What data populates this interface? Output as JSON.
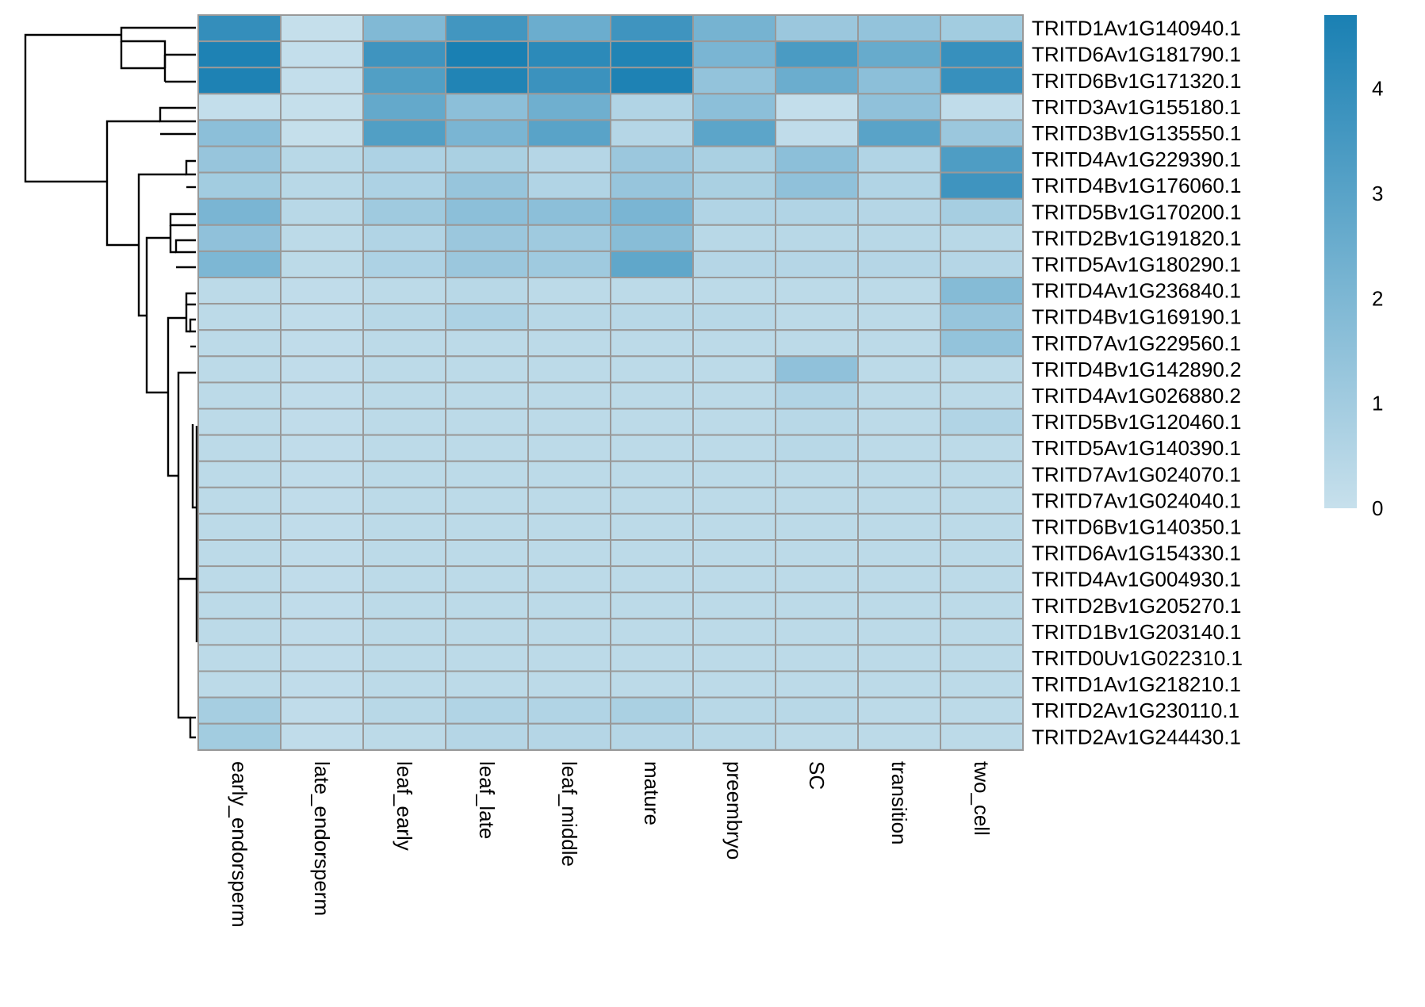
{
  "chart_data": {
    "type": "heatmap",
    "columns": [
      "early_endorsperm",
      "late_endorsperm",
      "leaf_early",
      "leaf_late",
      "leaf_middle",
      "mature",
      "preembryo",
      "SC",
      "transition",
      "two_cell"
    ],
    "rows": [
      "TRITD1Av1G140940.1",
      "TRITD6Av1G181790.1",
      "TRITD6Bv1G171320.1",
      "TRITD3Av1G155180.1",
      "TRITD3Bv1G135550.1",
      "TRITD4Av1G229390.1",
      "TRITD4Bv1G176060.1",
      "TRITD5Bv1G170200.1",
      "TRITD2Bv1G191820.1",
      "TRITD5Av1G180290.1",
      "TRITD4Av1G236840.1",
      "TRITD4Bv1G169190.1",
      "TRITD7Av1G229560.1",
      "TRITD4Bv1G142890.2",
      "TRITD4Av1G026880.2",
      "TRITD5Bv1G120460.1",
      "TRITD5Av1G140390.1",
      "TRITD7Av1G024070.1",
      "TRITD7Av1G024040.1",
      "TRITD6Bv1G140350.1",
      "TRITD6Av1G154330.1",
      "TRITD4Av1G004930.1",
      "TRITD2Bv1G205270.1",
      "TRITD1Bv1G203140.1",
      "TRITD0Uv1G022310.1",
      "TRITD1Av1G218210.1",
      "TRITD2Av1G230110.1",
      "TRITD2Av1G244430.1"
    ],
    "values": [
      [
        4.0,
        0.05,
        1.9,
        3.6,
        2.5,
        3.7,
        2.2,
        1.2,
        1.4,
        1.0
      ],
      [
        4.6,
        0.1,
        3.7,
        4.7,
        4.2,
        4.5,
        2.1,
        3.4,
        2.6,
        3.9
      ],
      [
        4.6,
        0.1,
        3.2,
        4.5,
        3.8,
        4.6,
        1.4,
        2.5,
        1.6,
        3.9
      ],
      [
        0.1,
        0.05,
        2.7,
        1.6,
        2.4,
        0.6,
        1.6,
        0.1,
        1.5,
        0.2
      ],
      [
        1.6,
        0.05,
        3.2,
        2.1,
        3.0,
        0.5,
        2.9,
        0.2,
        3.0,
        1.2
      ],
      [
        1.3,
        0.4,
        0.7,
        0.8,
        0.5,
        1.2,
        0.8,
        1.6,
        0.6,
        3.3
      ],
      [
        1.0,
        0.4,
        0.7,
        1.3,
        0.6,
        1.3,
        0.8,
        1.5,
        0.6,
        3.7
      ],
      [
        2.1,
        0.4,
        1.1,
        1.6,
        1.6,
        2.1,
        0.6,
        0.6,
        0.5,
        0.9
      ],
      [
        1.5,
        0.3,
        0.6,
        1.2,
        1.1,
        1.7,
        0.4,
        0.4,
        0.4,
        0.4
      ],
      [
        2.0,
        0.3,
        0.7,
        1.2,
        1.1,
        2.8,
        0.5,
        0.5,
        0.5,
        0.5
      ],
      [
        0.3,
        0.2,
        0.3,
        0.4,
        0.3,
        0.3,
        0.3,
        0.3,
        0.3,
        1.8
      ],
      [
        0.3,
        0.2,
        0.4,
        0.7,
        0.4,
        0.4,
        0.4,
        0.3,
        0.3,
        1.3
      ],
      [
        0.3,
        0.2,
        0.3,
        0.3,
        0.3,
        0.3,
        0.3,
        0.3,
        0.3,
        1.4
      ],
      [
        0.3,
        0.2,
        0.3,
        0.3,
        0.3,
        0.3,
        0.3,
        1.5,
        0.3,
        0.3
      ],
      [
        0.3,
        0.2,
        0.3,
        0.3,
        0.3,
        0.3,
        0.3,
        0.6,
        0.3,
        0.3
      ],
      [
        0.3,
        0.2,
        0.3,
        0.3,
        0.3,
        0.3,
        0.3,
        0.4,
        0.3,
        0.6
      ],
      [
        0.3,
        0.2,
        0.3,
        0.3,
        0.3,
        0.3,
        0.3,
        0.4,
        0.3,
        0.3
      ],
      [
        0.3,
        0.2,
        0.3,
        0.3,
        0.3,
        0.3,
        0.3,
        0.3,
        0.3,
        0.3
      ],
      [
        0.3,
        0.2,
        0.3,
        0.3,
        0.3,
        0.3,
        0.3,
        0.3,
        0.3,
        0.3
      ],
      [
        0.3,
        0.2,
        0.3,
        0.3,
        0.3,
        0.3,
        0.3,
        0.3,
        0.3,
        0.3
      ],
      [
        0.3,
        0.2,
        0.3,
        0.3,
        0.3,
        0.3,
        0.3,
        0.3,
        0.3,
        0.3
      ],
      [
        0.3,
        0.2,
        0.3,
        0.3,
        0.3,
        0.3,
        0.3,
        0.3,
        0.3,
        0.3
      ],
      [
        0.3,
        0.2,
        0.3,
        0.3,
        0.3,
        0.3,
        0.3,
        0.3,
        0.3,
        0.3
      ],
      [
        0.3,
        0.2,
        0.3,
        0.3,
        0.3,
        0.3,
        0.3,
        0.3,
        0.3,
        0.3
      ],
      [
        0.3,
        0.2,
        0.3,
        0.3,
        0.3,
        0.3,
        0.3,
        0.3,
        0.3,
        0.3
      ],
      [
        0.3,
        0.2,
        0.3,
        0.3,
        0.3,
        0.3,
        0.3,
        0.3,
        0.3,
        0.3
      ],
      [
        0.9,
        0.2,
        0.4,
        0.6,
        0.6,
        0.8,
        0.4,
        0.4,
        0.3,
        0.3
      ],
      [
        1.0,
        0.2,
        0.3,
        0.5,
        0.5,
        0.5,
        0.4,
        0.3,
        0.3,
        0.3
      ]
    ],
    "color_scale": {
      "min": 0,
      "max": 4.7,
      "low_color": "#c7e0ec",
      "high_color": "#1a80b3"
    },
    "legend": {
      "position": "right",
      "ticks": [
        0,
        1,
        2,
        3,
        4
      ],
      "labels": [
        "0",
        "1",
        "2",
        "3",
        "4"
      ]
    },
    "cell_border_color": "#999999",
    "row_dendrogram": true,
    "title": "",
    "xlabel": "",
    "ylabel": ""
  }
}
